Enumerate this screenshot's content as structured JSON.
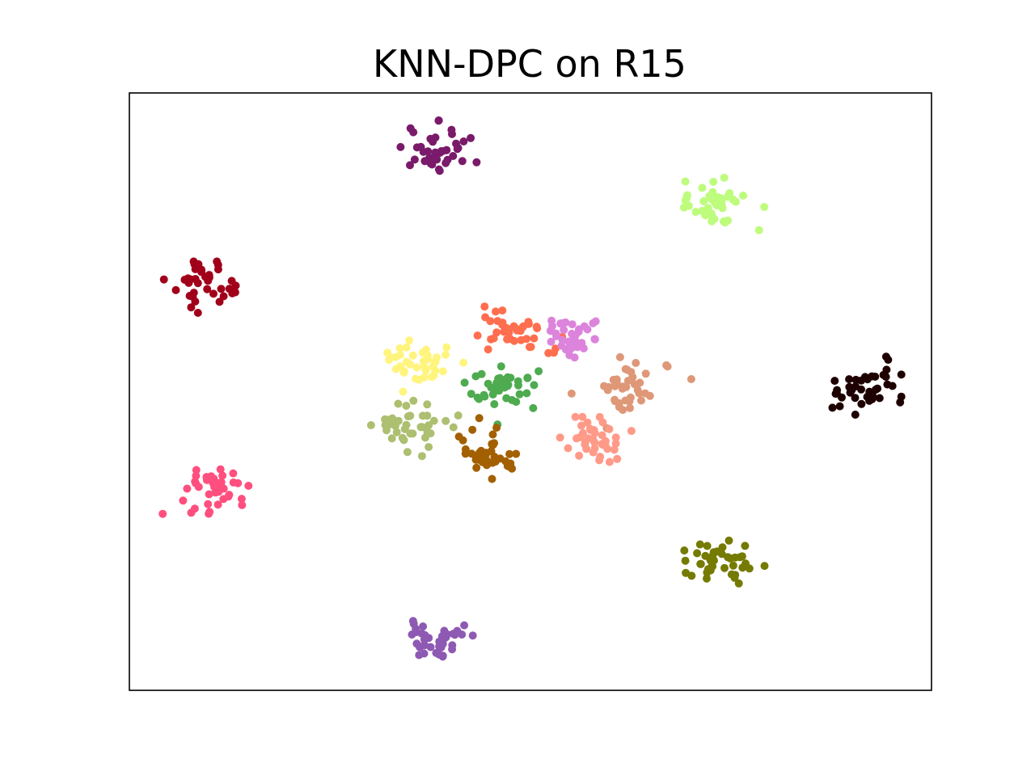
{
  "chart_data": {
    "type": "scatter",
    "title": "KNN-DPC on R15",
    "xlabel": "",
    "ylabel": "",
    "xlim": [
      3.0,
      17.0
    ],
    "ylim": [
      2.5,
      17.5
    ],
    "grid": false,
    "axis_ticks": false,
    "marker_size": 4,
    "series": [
      {
        "color": "#7a1a6a",
        "center": [
          8.4,
          16.0
        ],
        "spread": 0.3,
        "n": 40
      },
      {
        "color": "#bdfc7c",
        "center": [
          13.25,
          14.75
        ],
        "spread": 0.3,
        "n": 40
      },
      {
        "color": "#a1001a",
        "center": [
          4.4,
          12.75
        ],
        "spread": 0.3,
        "n": 40
      },
      {
        "color": "#ff6e4e",
        "center": [
          9.7,
          11.55
        ],
        "spread": 0.3,
        "n": 40
      },
      {
        "color": "#dc84dc",
        "center": [
          10.8,
          11.4
        ],
        "spread": 0.28,
        "n": 40
      },
      {
        "color": "#fff57e",
        "center": [
          8.0,
          10.8
        ],
        "spread": 0.28,
        "n": 40
      },
      {
        "color": "#4eab50",
        "center": [
          9.5,
          10.1
        ],
        "spread": 0.3,
        "n": 40
      },
      {
        "color": "#de9878",
        "center": [
          11.7,
          10.0
        ],
        "spread": 0.32,
        "n": 40
      },
      {
        "color": "#1e0000",
        "center": [
          15.9,
          10.0
        ],
        "spread": 0.3,
        "n": 40
      },
      {
        "color": "#adbf70",
        "center": [
          7.95,
          9.2
        ],
        "spread": 0.32,
        "n": 40
      },
      {
        "color": "#a36000",
        "center": [
          9.25,
          8.5
        ],
        "spread": 0.3,
        "n": 40
      },
      {
        "color": "#ff9a88",
        "center": [
          11.1,
          8.8
        ],
        "spread": 0.3,
        "n": 40
      },
      {
        "color": "#fe4f7e",
        "center": [
          4.35,
          7.6
        ],
        "spread": 0.32,
        "n": 40
      },
      {
        "color": "#757a00",
        "center": [
          13.3,
          5.7
        ],
        "spread": 0.3,
        "n": 40
      },
      {
        "color": "#8e59b3",
        "center": [
          8.4,
          3.8
        ],
        "spread": 0.28,
        "n": 40
      }
    ]
  }
}
